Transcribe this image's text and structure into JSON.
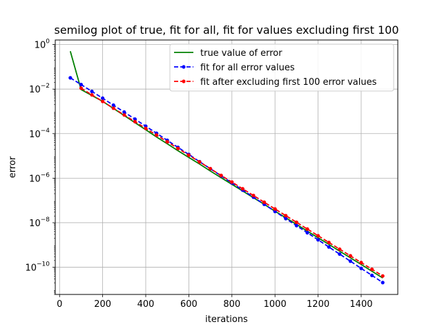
{
  "chart_data": {
    "type": "line",
    "title": "semilog plot of true, fit for all, fit for values excluding first 100",
    "xlabel": "iterations",
    "ylabel": "error",
    "xscale": "linear",
    "yscale": "log",
    "xlim": [
      -20,
      1570
    ],
    "ylim": [
      6e-12,
      1.6
    ],
    "x_ticks": [
      0,
      200,
      400,
      600,
      800,
      1000,
      1200,
      1400
    ],
    "y_ticks": [
      {
        "value": 1,
        "mantissa": "10",
        "exp": "0"
      },
      {
        "value": 0.01,
        "mantissa": "10",
        "exp": "−2"
      },
      {
        "value": 0.0001,
        "mantissa": "10",
        "exp": "−4"
      },
      {
        "value": 1e-06,
        "mantissa": "10",
        "exp": "−6"
      },
      {
        "value": 1e-08,
        "mantissa": "10",
        "exp": "−8"
      },
      {
        "value": 1e-10,
        "mantissa": "10",
        "exp": "−10"
      }
    ],
    "grid": true,
    "legend_position": "top-right",
    "series": [
      {
        "name": "true value of error",
        "color": "#008000",
        "style": "solid",
        "marker": "none",
        "x": [
          50,
          100,
          150,
          200,
          250,
          300,
          350,
          400,
          450,
          500,
          550,
          600,
          650,
          700,
          750,
          800,
          850,
          900,
          950,
          1000,
          1050,
          1100,
          1150,
          1200,
          1250,
          1300,
          1350,
          1400,
          1450,
          1500
        ],
        "y": [
          0.5,
          0.0095,
          0.0052,
          0.0028,
          0.00135,
          0.00065,
          0.00031,
          0.00015,
          7.1e-05,
          3.5e-05,
          1.7e-05,
          8.5e-06,
          4.3e-06,
          2.1e-06,
          1.05e-06,
          5.3e-07,
          2.65e-07,
          1.33e-07,
          6.7e-08,
          3.3e-08,
          1.67e-08,
          8.4e-09,
          4.2e-09,
          2.1e-09,
          1.06e-09,
          5.3e-10,
          2.65e-10,
          1.33e-10,
          6.6e-11,
          3.3e-11
        ]
      },
      {
        "name": "fit for all error values",
        "color": "#0000ff",
        "style": "dashed",
        "marker": "circle",
        "x": [
          50,
          100,
          150,
          200,
          250,
          300,
          350,
          400,
          450,
          500,
          550,
          600,
          650,
          700,
          750,
          800,
          850,
          900,
          950,
          1000,
          1050,
          1100,
          1150,
          1200,
          1250,
          1300,
          1350,
          1400,
          1450,
          1500
        ],
        "y": [
          0.032,
          0.016,
          0.0079,
          0.0039,
          0.0019,
          0.00093,
          0.00045,
          0.000215,
          0.000104,
          5e-05,
          2.4e-05,
          1.16e-05,
          5.5e-06,
          2.65e-06,
          1.27e-06,
          6.1e-07,
          2.9e-07,
          1.4e-07,
          6.7e-08,
          3.2e-08,
          1.53e-08,
          7.4e-09,
          3.55e-09,
          1.7e-09,
          8.1e-10,
          3.9e-10,
          1.87e-10,
          8.9e-11,
          4.3e-11,
          2.05e-11
        ]
      },
      {
        "name": "fit after excluding first 100 error values",
        "color": "#ff0000",
        "style": "dashed",
        "marker": "circle",
        "x": [
          100,
          150,
          200,
          250,
          300,
          350,
          400,
          450,
          500,
          550,
          600,
          650,
          700,
          750,
          800,
          850,
          900,
          950,
          1000,
          1050,
          1100,
          1150,
          1200,
          1250,
          1300,
          1350,
          1400,
          1450,
          1500
        ],
        "y": [
          0.011,
          0.0055,
          0.0028,
          0.00138,
          0.00069,
          0.000345,
          0.000172,
          8.6e-05,
          4.3e-05,
          2.15e-05,
          1.07e-05,
          5.35e-06,
          2.67e-06,
          1.33e-06,
          6.7e-07,
          3.33e-07,
          1.67e-07,
          8.3e-08,
          4.15e-08,
          2.08e-08,
          1.04e-08,
          5.2e-09,
          2.6e-09,
          1.3e-09,
          6.5e-10,
          3.25e-10,
          1.62e-10,
          8.1e-11,
          4.05e-11
        ]
      }
    ]
  }
}
